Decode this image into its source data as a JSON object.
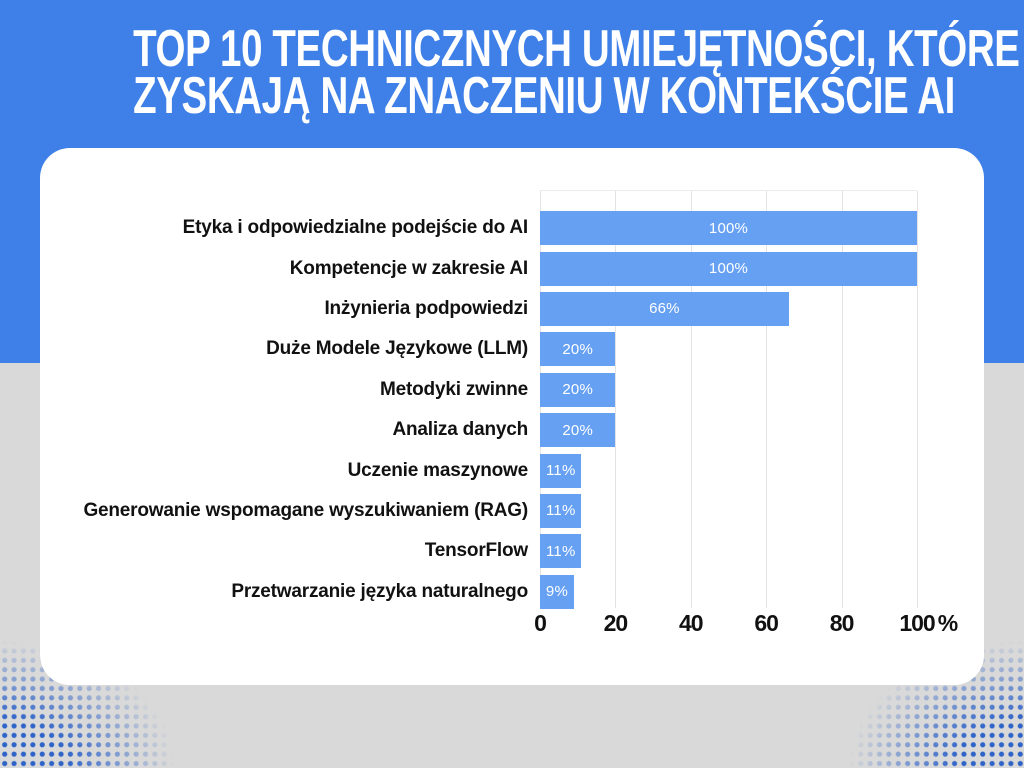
{
  "title": {
    "line1": "TOP 10 TECHNICZNYCH UMIEJĘTNOŚCI, KTÓRE",
    "line2": "ZYSKAJĄ NA ZNACZENIU W KONTEKŚCIE AI"
  },
  "colors": {
    "header_blue": "#3e80e8",
    "bar_blue": "#66a0f2",
    "page_grey": "#d9d9d9",
    "card_white": "#ffffff",
    "gridline_grey": "#e3e3e3",
    "dot_pattern_blue": "#2e63c8",
    "bar_value_text": "#ffffff",
    "label_text": "#111111"
  },
  "chart_data": {
    "type": "bar",
    "orientation": "horizontal",
    "title": "TOP 10 TECHNICZNYCH UMIEJĘTNOŚCI, KTÓRE ZYSKAJĄ NA ZNACZENIU W KONTEKŚCIE AI",
    "categories": [
      "Etyka i odpowiedzialne podejście do AI",
      "Kompetencje w zakresie AI",
      "Inżynieria podpowiedzi",
      "Duże Modele Językowe (LLM)",
      "Metodyki zwinne",
      "Analiza danych",
      "Uczenie maszynowe",
      "Generowanie wspomagane wyszukiwaniem (RAG)",
      "TensorFlow",
      "Przetwarzanie języka naturalnego"
    ],
    "values": [
      100,
      100,
      66,
      20,
      20,
      20,
      11,
      11,
      11,
      9
    ],
    "value_labels": [
      "100%",
      "100%",
      "66%",
      "20%",
      "20%",
      "20%",
      "11%",
      "11%",
      "11%",
      "9%"
    ],
    "xlabel": "%",
    "ylabel": "",
    "xlim": [
      0,
      100
    ],
    "x_ticks": [
      "0",
      "20",
      "40",
      "60",
      "80",
      "100"
    ],
    "x_unit": "%",
    "grid": "vertical",
    "legend": "none"
  }
}
